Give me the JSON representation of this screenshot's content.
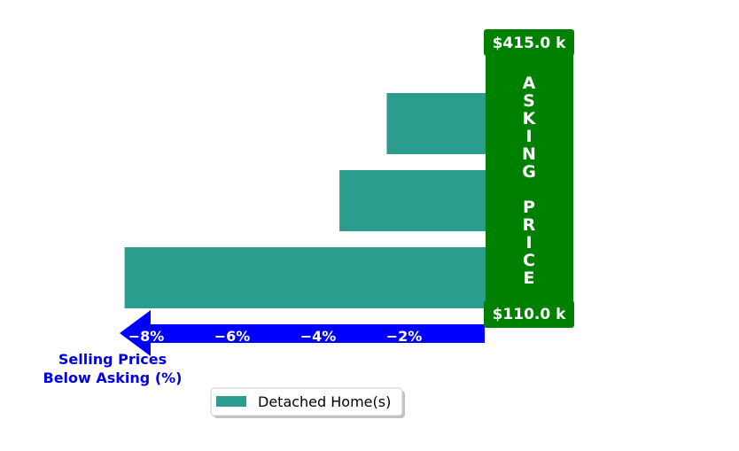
{
  "chart_data": {
    "type": "bar",
    "orientation": "horizontal",
    "categories": [
      "",
      "",
      ""
    ],
    "series": [
      {
        "name": "Detached Home(s)",
        "values": [
          -8.4,
          -3.4,
          -2.3
        ],
        "color": "#2a9d8f"
      }
    ],
    "xlim": [
      -9.2,
      0
    ],
    "xticks": [
      -8,
      -6,
      -4,
      -2
    ],
    "xtick_labels": [
      "−8%",
      "−6%",
      "−4%",
      "−2%"
    ],
    "xlabel": [
      "Selling Prices",
      "Below Asking (%)"
    ],
    "grid": false,
    "legend": {
      "position": "bottom-center",
      "entries": [
        "Detached Home(s)"
      ]
    },
    "asking_price_banner": {
      "text": "ASKING PRICE",
      "top_price": "$415.0 k",
      "bottom_price": "$110.0 k",
      "color": "#008000"
    },
    "arrow_color": "#0000ff",
    "axis_label_color": "#0000ee"
  }
}
